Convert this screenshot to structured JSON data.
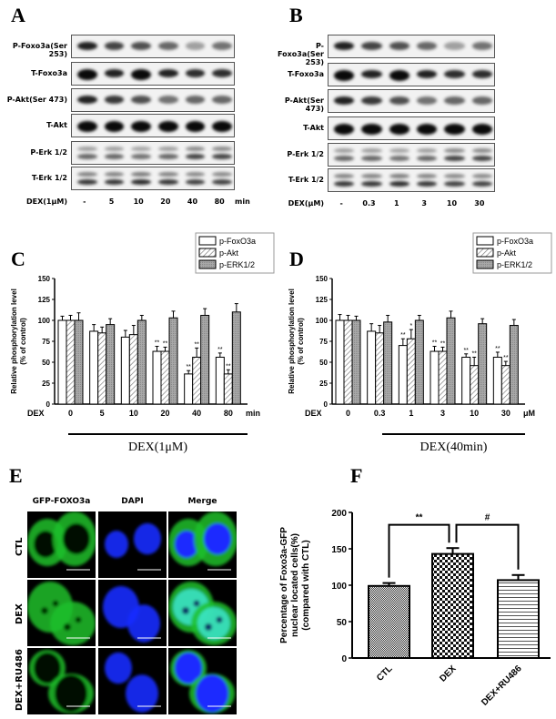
{
  "panels": {
    "a": "A",
    "b": "B",
    "c": "C",
    "d": "D",
    "e": "E",
    "f": "F"
  },
  "blot_a": {
    "rows": [
      "P-Foxo3a(Ser 253)",
      "T-Foxo3a",
      "P-Akt(Ser 473)",
      "T-Akt",
      "P-Erk 1/2",
      "T-Erk 1/2"
    ],
    "dex_label": "DEX(1μM)",
    "lanes": [
      "-",
      "5",
      "10",
      "20",
      "40",
      "80"
    ],
    "unit": "min"
  },
  "blot_b": {
    "rows": [
      "P-Foxo3a(Ser 253)",
      "T-Foxo3a",
      "P-Akt(Ser 473)",
      "T-Akt",
      "P-Erk 1/2",
      "T-Erk 1/2"
    ],
    "dex_label": "DEX(μM)",
    "lanes": [
      "-",
      "0.3",
      "1",
      "3",
      "10",
      "30"
    ],
    "unit": ""
  },
  "chart_data": [
    {
      "id": "C",
      "type": "bar",
      "categories": [
        "0",
        "5",
        "10",
        "20",
        "40",
        "80"
      ],
      "x_prefix": "DEX",
      "x_unit": "min",
      "ylabel": "Relative phosphorylation level\n(% of control)",
      "ylim": [
        0,
        150
      ],
      "yticks": [
        0,
        25,
        50,
        75,
        100,
        125,
        150
      ],
      "bracket_label": "DEX(1μM)",
      "legend": "top-right",
      "series": [
        {
          "name": "p-FoxO3a",
          "values": [
            100,
            87,
            80,
            63,
            36,
            56
          ],
          "errors": [
            5,
            8,
            8,
            6,
            4,
            5
          ],
          "sig": [
            "",
            "",
            "",
            "**",
            "**",
            "**"
          ]
        },
        {
          "name": "p-Akt",
          "values": [
            100,
            85,
            83,
            63,
            56,
            36
          ],
          "errors": [
            6,
            7,
            11,
            5,
            11,
            5
          ],
          "sig": [
            "",
            "",
            "",
            "**",
            "**",
            "**"
          ]
        },
        {
          "name": "p-ERK1/2",
          "values": [
            100,
            95,
            100,
            103,
            106,
            110
          ],
          "errors": [
            9,
            7,
            6,
            8,
            8,
            10
          ],
          "sig": [
            "",
            "",
            "",
            "",
            "",
            ""
          ]
        }
      ]
    },
    {
      "id": "D",
      "type": "bar",
      "categories": [
        "0",
        "0.3",
        "1",
        "3",
        "10",
        "30"
      ],
      "x_prefix": "DEX",
      "x_unit": "μM",
      "ylabel": "Relative phosphorylation level\n(% of control)",
      "ylim": [
        0,
        150
      ],
      "yticks": [
        0,
        25,
        50,
        75,
        100,
        125,
        150
      ],
      "bracket_label": "DEX(40min)",
      "legend": "top-right",
      "series": [
        {
          "name": "p-FoxO3a",
          "values": [
            100,
            87,
            70,
            63,
            56,
            56
          ],
          "errors": [
            7,
            9,
            8,
            6,
            4,
            6
          ],
          "sig": [
            "",
            "",
            "**",
            "**",
            "**",
            "**"
          ]
        },
        {
          "name": "p-Akt",
          "values": [
            100,
            85,
            78,
            63,
            46,
            46
          ],
          "errors": [
            6,
            9,
            11,
            5,
            10,
            5
          ],
          "sig": [
            "",
            "",
            "*",
            "**",
            "**",
            "**"
          ]
        },
        {
          "name": "p-ERK1/2",
          "values": [
            100,
            98,
            100,
            103,
            96,
            94
          ],
          "errors": [
            5,
            8,
            6,
            8,
            6,
            7
          ],
          "sig": [
            "",
            "",
            "",
            "",
            "",
            ""
          ]
        }
      ]
    },
    {
      "id": "F",
      "type": "bar",
      "categories": [
        "CTL",
        "DEX",
        "DEX+RU486"
      ],
      "ylabel": "Percentage of Foxo3a-GFP\nnuclear located cells(%)\n(compared with CTL)",
      "ylim": [
        0,
        200
      ],
      "yticks": [
        0,
        50,
        100,
        150,
        200
      ],
      "values": [
        99,
        143,
        107
      ],
      "errors": [
        4,
        8,
        7
      ],
      "comparisons": [
        {
          "from": "CTL",
          "to": "DEX",
          "label": "**"
        },
        {
          "from": "DEX",
          "to": "DEX+RU486",
          "label": "#"
        }
      ]
    }
  ],
  "micro": {
    "columns": [
      "GFP-FOXO3a",
      "DAPI",
      "Merge"
    ],
    "rows": [
      "CTL",
      "DEX",
      "DEX+RU486"
    ]
  },
  "colors": {
    "gfp": "#1fbf2a",
    "dapi": "#1a2cff",
    "erk_fill": "#a8a8a8"
  }
}
